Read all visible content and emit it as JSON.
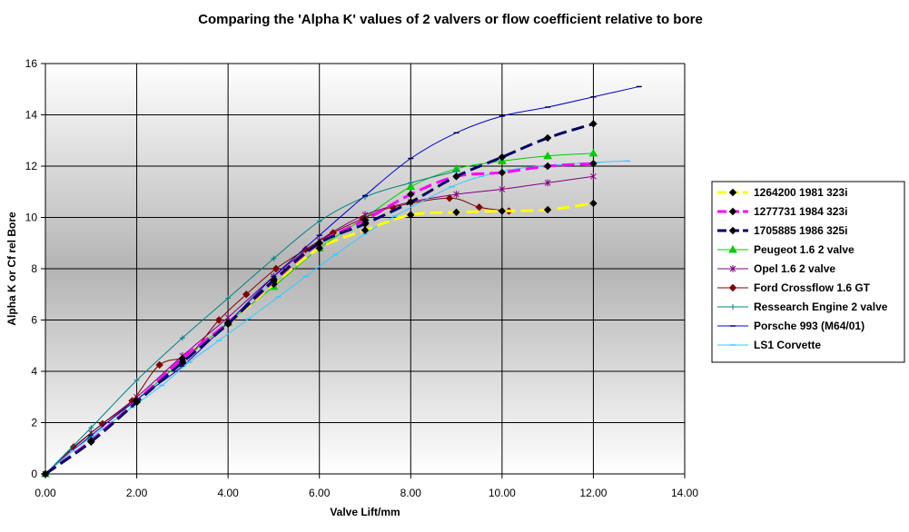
{
  "chart_data": {
    "type": "line",
    "title": "Comparing the 'Alpha K' values of 2 valvers or flow coefficient relative to bore",
    "xlabel": "Valve Lift/mm",
    "ylabel": "Alpha K or Cf rel Bore",
    "xlim": [
      0,
      14
    ],
    "ylim": [
      0,
      16
    ],
    "xticks": [
      0,
      2,
      4,
      6,
      8,
      10,
      12,
      14
    ],
    "xtick_labels": [
      "0.00",
      "2.00",
      "4.00",
      "6.00",
      "8.00",
      "10.00",
      "12.00",
      "14.00"
    ],
    "yticks": [
      0,
      2,
      4,
      6,
      8,
      10,
      12,
      14,
      16
    ],
    "ytick_labels": [
      "0",
      "2",
      "4",
      "6",
      "8",
      "10",
      "12",
      "14",
      "16"
    ],
    "grid": true,
    "legend_position": "right",
    "series": [
      {
        "name": "1264200 1981 323i",
        "color": "#ffff00",
        "marker": "diamond",
        "marker_color": "#000000",
        "dashed": true,
        "width": 3,
        "points": [
          [
            0,
            0
          ],
          [
            1,
            1.25
          ],
          [
            2,
            2.8
          ],
          [
            3,
            4.4
          ],
          [
            4,
            5.85
          ],
          [
            5,
            7.4
          ],
          [
            6,
            8.8
          ],
          [
            7,
            9.5
          ],
          [
            8,
            10.1
          ],
          [
            9,
            10.2
          ],
          [
            10,
            10.25
          ],
          [
            11,
            10.3
          ],
          [
            12,
            10.55
          ]
        ]
      },
      {
        "name": "1277731 1984 323i",
        "color": "#ff00ff",
        "marker": "diamond",
        "marker_color": "#000000",
        "dashed": true,
        "width": 3,
        "points": [
          [
            0,
            0
          ],
          [
            1,
            1.3
          ],
          [
            2,
            2.85
          ],
          [
            3,
            4.5
          ],
          [
            4,
            5.9
          ],
          [
            5,
            7.5
          ],
          [
            6,
            9.0
          ],
          [
            7,
            9.9
          ],
          [
            8,
            10.9
          ],
          [
            9,
            11.6
          ],
          [
            10,
            11.75
          ],
          [
            11,
            12.0
          ],
          [
            12,
            12.1
          ]
        ]
      },
      {
        "name": "1705885 1986 325i",
        "color": "#000066",
        "marker": "diamond",
        "marker_color": "#000000",
        "dashed": true,
        "width": 3,
        "points": [
          [
            0,
            0
          ],
          [
            1,
            1.25
          ],
          [
            2,
            2.8
          ],
          [
            3,
            4.35
          ],
          [
            4,
            5.85
          ],
          [
            5,
            7.55
          ],
          [
            6,
            9.0
          ],
          [
            7,
            9.75
          ],
          [
            8,
            10.6
          ],
          [
            9,
            11.6
          ],
          [
            10,
            12.35
          ],
          [
            11,
            13.1
          ],
          [
            12,
            13.65
          ]
        ]
      },
      {
        "name": "Peugeot 1.6 2 valve",
        "color": "#00cc00",
        "marker": "triangle",
        "marker_color": "#00cc00",
        "dashed": false,
        "width": 1,
        "points": [
          [
            0,
            0
          ],
          [
            1,
            1.5
          ],
          [
            2,
            2.9
          ],
          [
            3,
            4.4
          ],
          [
            4,
            5.9
          ],
          [
            5,
            7.3
          ],
          [
            6,
            8.8
          ],
          [
            7,
            10.0
          ],
          [
            8,
            11.2
          ],
          [
            9,
            11.9
          ],
          [
            10,
            12.2
          ],
          [
            11,
            12.4
          ],
          [
            12,
            12.5
          ]
        ]
      },
      {
        "name": "Opel 1.6 2 valve",
        "color": "#800080",
        "marker": "star",
        "marker_color": "#800080",
        "dashed": false,
        "width": 1,
        "points": [
          [
            0,
            0
          ],
          [
            1,
            1.6
          ],
          [
            2,
            3.0
          ],
          [
            3,
            4.6
          ],
          [
            4,
            6.1
          ],
          [
            5,
            7.7
          ],
          [
            6,
            9.1
          ],
          [
            7,
            10.1
          ],
          [
            8,
            10.6
          ],
          [
            9,
            10.9
          ],
          [
            10,
            11.1
          ],
          [
            11,
            11.35
          ],
          [
            12,
            11.6
          ]
        ]
      },
      {
        "name": "Ford Crossflow 1.6 GT",
        "color": "#800000",
        "marker": "diamond",
        "marker_color": "#800000",
        "dashed": false,
        "width": 1,
        "points": [
          [
            0,
            0
          ],
          [
            0.62,
            1.05
          ],
          [
            1.25,
            1.95
          ],
          [
            1.9,
            2.85
          ],
          [
            2.5,
            4.25
          ],
          [
            3.15,
            4.65
          ],
          [
            3.8,
            6.0
          ],
          [
            4.4,
            7.0
          ],
          [
            5.05,
            8.0
          ],
          [
            5.7,
            8.75
          ],
          [
            6.3,
            9.4
          ],
          [
            6.95,
            9.95
          ],
          [
            7.6,
            10.4
          ],
          [
            8.85,
            10.75
          ],
          [
            9.5,
            10.4
          ],
          [
            10.15,
            10.25
          ]
        ]
      },
      {
        "name": "Ressearch Engine 2 valve",
        "color": "#008080",
        "marker": "plus",
        "marker_color": "#008080",
        "dashed": false,
        "width": 1,
        "points": [
          [
            0,
            0
          ],
          [
            1,
            1.8
          ],
          [
            2,
            3.65
          ],
          [
            3,
            5.3
          ],
          [
            4,
            6.85
          ],
          [
            5,
            8.4
          ],
          [
            6,
            9.85
          ],
          [
            7,
            10.8
          ],
          [
            8,
            11.35
          ],
          [
            9,
            11.8
          ]
        ]
      },
      {
        "name": "Porsche 993 (M64/01)",
        "color": "#0000cc",
        "marker": "dash",
        "marker_color": "#000066",
        "dashed": false,
        "width": 1,
        "points": [
          [
            0,
            0
          ],
          [
            1,
            1.5
          ],
          [
            2,
            2.9
          ],
          [
            3,
            4.2
          ],
          [
            4,
            5.9
          ],
          [
            5,
            7.7
          ],
          [
            6,
            9.3
          ],
          [
            7,
            10.85
          ],
          [
            8,
            12.3
          ],
          [
            9,
            13.3
          ],
          [
            10,
            13.95
          ],
          [
            11,
            14.3
          ],
          [
            12,
            14.7
          ],
          [
            13,
            15.1
          ]
        ]
      },
      {
        "name": "LS1 Corvette",
        "color": "#33ccff",
        "marker": "dash",
        "marker_color": "#33ccff",
        "dashed": false,
        "width": 1,
        "points": [
          [
            0,
            0
          ],
          [
            0.6,
            0.9
          ],
          [
            1.25,
            1.75
          ],
          [
            1.9,
            2.6
          ],
          [
            2.55,
            3.45
          ],
          [
            3.15,
            4.35
          ],
          [
            3.8,
            5.2
          ],
          [
            4.45,
            6.05
          ],
          [
            5.1,
            6.9
          ],
          [
            5.7,
            7.7
          ],
          [
            6.35,
            8.55
          ],
          [
            7.0,
            9.35
          ],
          [
            7.65,
            10.05
          ],
          [
            8.9,
            11.2
          ],
          [
            9.55,
            11.6
          ],
          [
            10.15,
            11.85
          ],
          [
            10.8,
            12.0
          ],
          [
            12.1,
            12.15
          ],
          [
            12.75,
            12.2
          ]
        ]
      }
    ]
  }
}
